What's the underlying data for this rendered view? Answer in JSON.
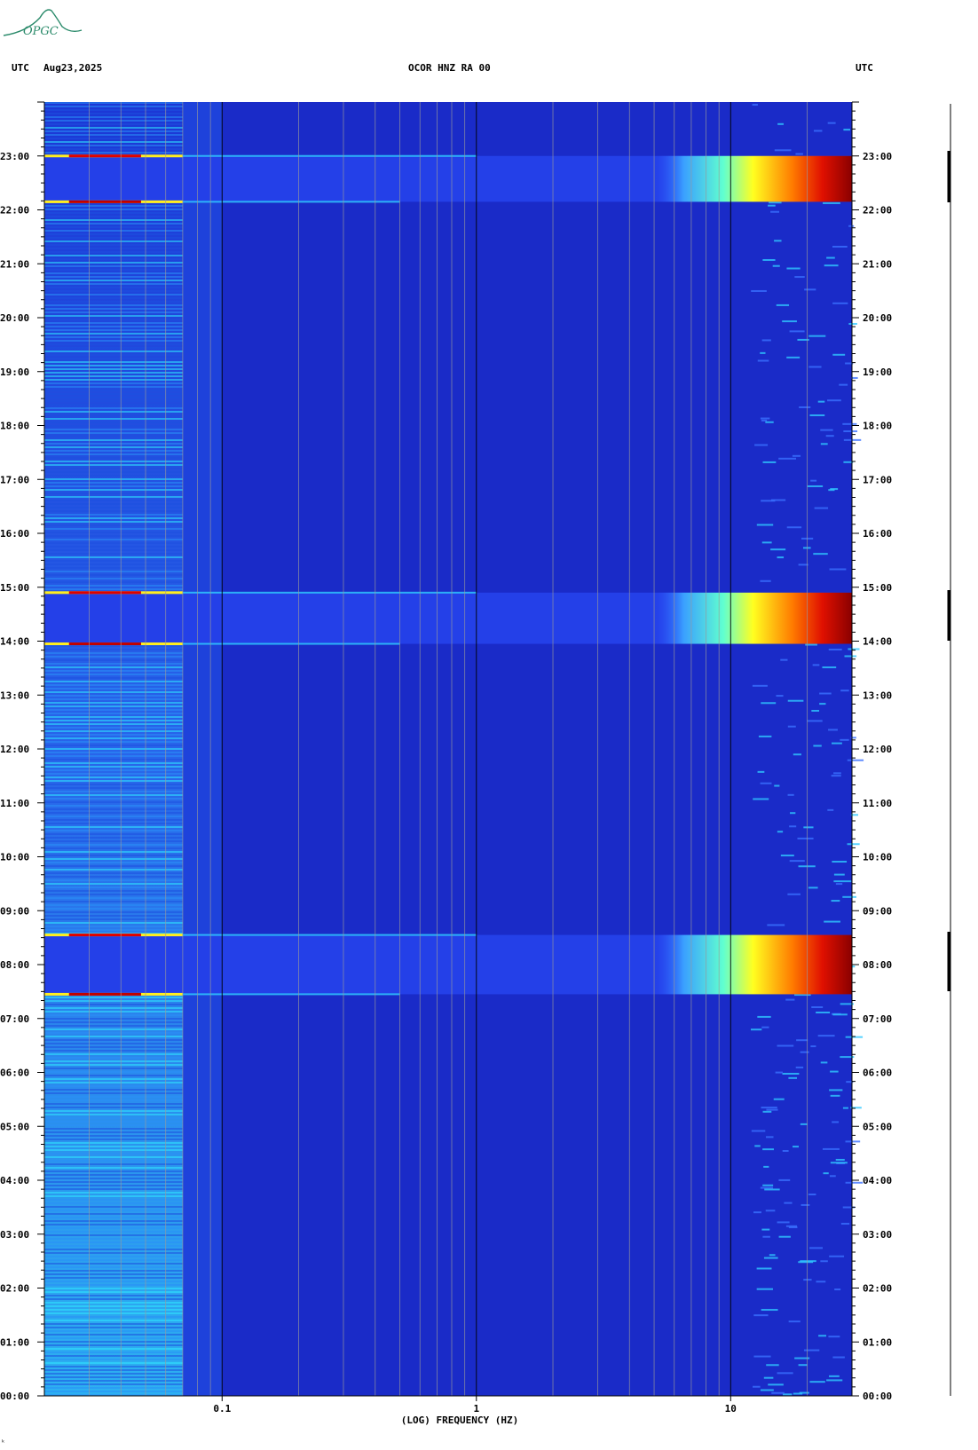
{
  "header": {
    "left_tz": "UTC",
    "date": "Aug23,2025",
    "station": "OCOR HNZ RA 00",
    "right_tz": "UTC"
  },
  "logo": {
    "text": "OPGC"
  },
  "footer_mark": "ᵏ",
  "chart_data": {
    "type": "heatmap",
    "title": "OCOR HNZ RA 00",
    "xlabel": "(LOG) FREQUENCY (HZ)",
    "ylabel": "",
    "x_scale": "log",
    "xlim": [
      0.02,
      30
    ],
    "x_ticks": [
      {
        "value": 0.1,
        "label": "0.1"
      },
      {
        "value": 1,
        "label": "1"
      },
      {
        "value": 10,
        "label": "10"
      }
    ],
    "y_unit": "hours UTC",
    "ylim": [
      0,
      24
    ],
    "y_ticks": [
      {
        "value": 0,
        "label": "00:00"
      },
      {
        "value": 1,
        "label": "01:00"
      },
      {
        "value": 2,
        "label": "02:00"
      },
      {
        "value": 3,
        "label": "03:00"
      },
      {
        "value": 4,
        "label": "04:00"
      },
      {
        "value": 5,
        "label": "05:00"
      },
      {
        "value": 6,
        "label": "06:00"
      },
      {
        "value": 7,
        "label": "07:00"
      },
      {
        "value": 8,
        "label": "08:00"
      },
      {
        "value": 9,
        "label": "09:00"
      },
      {
        "value": 10,
        "label": "10:00"
      },
      {
        "value": 11,
        "label": "11:00"
      },
      {
        "value": 12,
        "label": "12:00"
      },
      {
        "value": 13,
        "label": "13:00"
      },
      {
        "value": 14,
        "label": "14:00"
      },
      {
        "value": 15,
        "label": "15:00"
      },
      {
        "value": 16,
        "label": "16:00"
      },
      {
        "value": 17,
        "label": "17:00"
      },
      {
        "value": 18,
        "label": "18:00"
      },
      {
        "value": 19,
        "label": "19:00"
      },
      {
        "value": 20,
        "label": "20:00"
      },
      {
        "value": 21,
        "label": "21:00"
      },
      {
        "value": 22,
        "label": "22:00"
      },
      {
        "value": 23,
        "label": "23:00"
      }
    ],
    "grid": true,
    "colormap": [
      "#00008f",
      "#0000ff",
      "#0080ff",
      "#00ffff",
      "#80ff80",
      "#ffff00",
      "#ff8000",
      "#ff0000",
      "#800000"
    ],
    "background_color": "#1a2bc8",
    "high_energy_events": [
      {
        "start_hour": 7.45,
        "end_hour": 8.55
      },
      {
        "start_hour": 13.95,
        "end_hour": 14.9
      },
      {
        "start_hour": 22.15,
        "end_hour": 23.0
      }
    ],
    "low_frequency_band_hz": [
      0.02,
      0.07
    ]
  }
}
